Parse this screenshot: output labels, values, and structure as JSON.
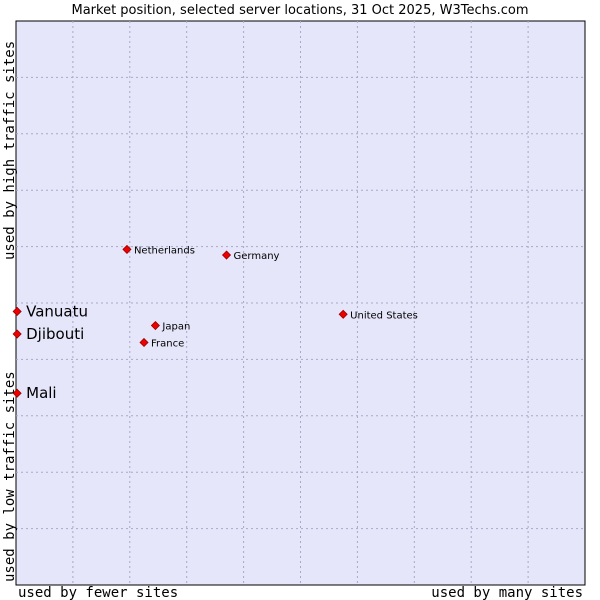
{
  "chart_data": {
    "type": "scatter",
    "title": "Market position, selected server locations, 31 Oct 2025, W3Techs.com",
    "xlabel_left": "used by fewer sites",
    "xlabel_right": "used by many sites",
    "ylabel_top": "used by high traffic sites",
    "ylabel_bottom": "used by low traffic sites",
    "xlim": [
      0,
      10
    ],
    "ylim": [
      0,
      10
    ],
    "grid": true,
    "colors": {
      "plot_bg": "#e6e6fa",
      "grid": "#a8a8c8",
      "point": "#ee0000",
      "point_stroke": "#990000"
    },
    "points": [
      {
        "label": "Netherlands",
        "x": 1.95,
        "y": 5.95,
        "emphasis": false
      },
      {
        "label": "Germany",
        "x": 3.7,
        "y": 5.85,
        "emphasis": false
      },
      {
        "label": "United States",
        "x": 5.75,
        "y": 4.8,
        "emphasis": false
      },
      {
        "label": "Japan",
        "x": 2.45,
        "y": 4.6,
        "emphasis": false
      },
      {
        "label": "France",
        "x": 2.25,
        "y": 4.3,
        "emphasis": false
      },
      {
        "label": "Vanuatu",
        "x": 0.02,
        "y": 4.85,
        "emphasis": true
      },
      {
        "label": "Djibouti",
        "x": 0.02,
        "y": 4.45,
        "emphasis": true
      },
      {
        "label": "Mali",
        "x": 0.02,
        "y": 3.4,
        "emphasis": true
      }
    ]
  }
}
